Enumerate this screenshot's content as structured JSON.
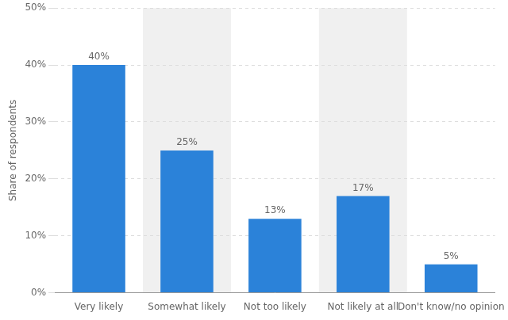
{
  "chart_data": {
    "type": "bar",
    "categories": [
      "Very likely",
      "Somewhat likely",
      "Not too likely",
      "Not likely at all",
      "Don't know/no opinion"
    ],
    "values": [
      40,
      25,
      13,
      17,
      5
    ],
    "value_labels": [
      "40%",
      "25%",
      "13%",
      "17%",
      "5%"
    ],
    "data_labels": true,
    "color": "#2b82d9",
    "ylabel": "Share of respondents",
    "ylim": [
      0,
      50
    ],
    "yticks": [
      {
        "value": 0,
        "label": "0%"
      },
      {
        "value": 10,
        "label": "10%"
      },
      {
        "value": 20,
        "label": "20%"
      },
      {
        "value": 30,
        "label": "30%"
      },
      {
        "value": 40,
        "label": "40%"
      },
      {
        "value": 50,
        "label": "50%"
      }
    ],
    "grid": true
  }
}
